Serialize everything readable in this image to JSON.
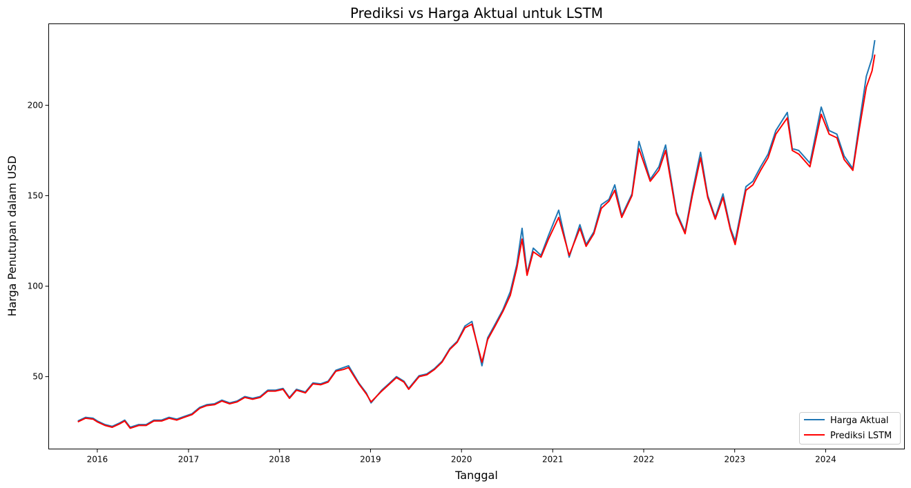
{
  "chart_data": {
    "type": "line",
    "title": "Prediksi vs Harga Aktual untuk LSTM",
    "xlabel": "Tanggal",
    "ylabel": "Harga Penutupan dalam USD",
    "x_ticks": [
      "2016",
      "2017",
      "2018",
      "2019",
      "2020",
      "2021",
      "2022",
      "2023",
      "2024"
    ],
    "y_ticks": [
      50,
      100,
      150,
      200
    ],
    "xlim": [
      "2015-06-20",
      "2024-11-12"
    ],
    "ylim": [
      10,
      245
    ],
    "grid": false,
    "legend_position": "lower-right",
    "series": [
      {
        "name": "Harga Aktual",
        "color": "#1f77b4",
        "points": [
          [
            "2015-10-15",
            25.5
          ],
          [
            "2015-11-15",
            27.5
          ],
          [
            "2015-12-15",
            27.0
          ],
          [
            "2016-01-01",
            25.5
          ],
          [
            "2016-02-01",
            23.5
          ],
          [
            "2016-03-01",
            22.5
          ],
          [
            "2016-04-01",
            24.5
          ],
          [
            "2016-04-20",
            26.0
          ],
          [
            "2016-05-12",
            22.0
          ],
          [
            "2016-06-15",
            23.5
          ],
          [
            "2016-07-15",
            23.5
          ],
          [
            "2016-08-15",
            26.0
          ],
          [
            "2016-09-15",
            26.0
          ],
          [
            "2016-10-15",
            27.5
          ],
          [
            "2016-11-15",
            26.5
          ],
          [
            "2016-12-15",
            28.0
          ],
          [
            "2017-01-15",
            29.5
          ],
          [
            "2017-02-15",
            33.0
          ],
          [
            "2017-03-15",
            34.5
          ],
          [
            "2017-04-15",
            35.0
          ],
          [
            "2017-05-15",
            37.0
          ],
          [
            "2017-06-15",
            35.5
          ],
          [
            "2017-07-15",
            36.5
          ],
          [
            "2017-08-15",
            39.0
          ],
          [
            "2017-09-15",
            38.0
          ],
          [
            "2017-10-15",
            39.0
          ],
          [
            "2017-11-15",
            42.5
          ],
          [
            "2017-12-15",
            42.5
          ],
          [
            "2018-01-15",
            43.5
          ],
          [
            "2018-02-10",
            38.5
          ],
          [
            "2018-03-10",
            43.0
          ],
          [
            "2018-04-15",
            41.5
          ],
          [
            "2018-05-15",
            46.5
          ],
          [
            "2018-06-15",
            46.0
          ],
          [
            "2018-07-15",
            47.5
          ],
          [
            "2018-08-15",
            53.5
          ],
          [
            "2018-09-15",
            55.0
          ],
          [
            "2018-10-05",
            56.0
          ],
          [
            "2018-11-15",
            46.5
          ],
          [
            "2018-12-15",
            41.0
          ],
          [
            "2019-01-03",
            35.5
          ],
          [
            "2019-02-15",
            42.5
          ],
          [
            "2019-03-15",
            46.0
          ],
          [
            "2019-04-15",
            50.0
          ],
          [
            "2019-05-15",
            47.5
          ],
          [
            "2019-06-03",
            43.5
          ],
          [
            "2019-07-15",
            50.5
          ],
          [
            "2019-08-15",
            51.5
          ],
          [
            "2019-09-15",
            54.5
          ],
          [
            "2019-10-15",
            58.5
          ],
          [
            "2019-11-15",
            65.5
          ],
          [
            "2019-12-15",
            69.5
          ],
          [
            "2020-01-15",
            78.0
          ],
          [
            "2020-02-12",
            80.5
          ],
          [
            "2020-03-23",
            56.0
          ],
          [
            "2020-04-15",
            71.5
          ],
          [
            "2020-05-15",
            79.0
          ],
          [
            "2020-06-15",
            87.0
          ],
          [
            "2020-07-15",
            97.0
          ],
          [
            "2020-08-10",
            112.0
          ],
          [
            "2020-08-31",
            132.0
          ],
          [
            "2020-09-20",
            107.0
          ],
          [
            "2020-10-15",
            121.0
          ],
          [
            "2020-11-15",
            117.0
          ],
          [
            "2020-12-15",
            128.0
          ],
          [
            "2021-01-25",
            142.0
          ],
          [
            "2021-03-08",
            116.0
          ],
          [
            "2021-04-20",
            134.0
          ],
          [
            "2021-05-15",
            123.0
          ],
          [
            "2021-06-15",
            130.0
          ],
          [
            "2021-07-15",
            145.0
          ],
          [
            "2021-08-15",
            148.0
          ],
          [
            "2021-09-07",
            156.0
          ],
          [
            "2021-10-05",
            139.0
          ],
          [
            "2021-11-15",
            151.0
          ],
          [
            "2021-12-13",
            180.0
          ],
          [
            "2022-01-27",
            159.0
          ],
          [
            "2022-03-03",
            166.0
          ],
          [
            "2022-03-30",
            178.0
          ],
          [
            "2022-05-12",
            141.0
          ],
          [
            "2022-06-16",
            130.0
          ],
          [
            "2022-07-15",
            152.0
          ],
          [
            "2022-08-17",
            174.0
          ],
          [
            "2022-09-15",
            150.0
          ],
          [
            "2022-10-15",
            138.0
          ],
          [
            "2022-11-15",
            151.0
          ],
          [
            "2022-12-15",
            132.0
          ],
          [
            "2023-01-03",
            125.0
          ],
          [
            "2023-02-15",
            155.0
          ],
          [
            "2023-03-15",
            158.0
          ],
          [
            "2023-04-15",
            166.0
          ],
          [
            "2023-05-15",
            173.0
          ],
          [
            "2023-06-15",
            186.0
          ],
          [
            "2023-07-31",
            196.0
          ],
          [
            "2023-08-20",
            176.0
          ],
          [
            "2023-09-15",
            175.0
          ],
          [
            "2023-10-30",
            168.0
          ],
          [
            "2023-12-14",
            199.0
          ],
          [
            "2024-01-15",
            186.0
          ],
          [
            "2024-02-15",
            184.0
          ],
          [
            "2024-03-15",
            172.0
          ],
          [
            "2024-04-19",
            165.0
          ],
          [
            "2024-05-15",
            190.0
          ],
          [
            "2024-06-12",
            216.0
          ],
          [
            "2024-07-05",
            226.0
          ],
          [
            "2024-07-16",
            236.0
          ]
        ]
      },
      {
        "name": "Prediksi LSTM",
        "color": "#ff0000",
        "points": [
          [
            "2015-10-15",
            25.0
          ],
          [
            "2015-11-15",
            27.0
          ],
          [
            "2015-12-15",
            26.5
          ],
          [
            "2016-01-01",
            25.0
          ],
          [
            "2016-02-01",
            23.0
          ],
          [
            "2016-03-01",
            22.0
          ],
          [
            "2016-04-01",
            24.0
          ],
          [
            "2016-04-20",
            25.5
          ],
          [
            "2016-05-12",
            21.5
          ],
          [
            "2016-06-15",
            23.0
          ],
          [
            "2016-07-15",
            23.0
          ],
          [
            "2016-08-15",
            25.5
          ],
          [
            "2016-09-15",
            25.5
          ],
          [
            "2016-10-15",
            27.0
          ],
          [
            "2016-11-15",
            26.0
          ],
          [
            "2016-12-15",
            27.5
          ],
          [
            "2017-01-15",
            29.0
          ],
          [
            "2017-02-15",
            32.5
          ],
          [
            "2017-03-15",
            34.0
          ],
          [
            "2017-04-15",
            34.5
          ],
          [
            "2017-05-15",
            36.5
          ],
          [
            "2017-06-15",
            35.0
          ],
          [
            "2017-07-15",
            36.0
          ],
          [
            "2017-08-15",
            38.5
          ],
          [
            "2017-09-15",
            37.5
          ],
          [
            "2017-10-15",
            38.5
          ],
          [
            "2017-11-15",
            42.0
          ],
          [
            "2017-12-15",
            42.0
          ],
          [
            "2018-01-15",
            43.0
          ],
          [
            "2018-02-10",
            38.0
          ],
          [
            "2018-03-10",
            42.5
          ],
          [
            "2018-04-15",
            41.0
          ],
          [
            "2018-05-15",
            46.0
          ],
          [
            "2018-06-15",
            45.5
          ],
          [
            "2018-07-15",
            47.0
          ],
          [
            "2018-08-15",
            53.0
          ],
          [
            "2018-09-15",
            54.0
          ],
          [
            "2018-10-05",
            55.0
          ],
          [
            "2018-11-15",
            46.0
          ],
          [
            "2018-12-15",
            40.5
          ],
          [
            "2019-01-03",
            36.0
          ],
          [
            "2019-02-15",
            42.0
          ],
          [
            "2019-03-15",
            45.5
          ],
          [
            "2019-04-15",
            49.5
          ],
          [
            "2019-05-15",
            47.0
          ],
          [
            "2019-06-03",
            43.0
          ],
          [
            "2019-07-15",
            50.0
          ],
          [
            "2019-08-15",
            51.0
          ],
          [
            "2019-09-15",
            54.0
          ],
          [
            "2019-10-15",
            58.0
          ],
          [
            "2019-11-15",
            65.0
          ],
          [
            "2019-12-15",
            69.0
          ],
          [
            "2020-01-15",
            77.0
          ],
          [
            "2020-02-12",
            79.0
          ],
          [
            "2020-03-23",
            58.0
          ],
          [
            "2020-04-15",
            70.5
          ],
          [
            "2020-05-15",
            78.0
          ],
          [
            "2020-06-15",
            86.0
          ],
          [
            "2020-07-15",
            95.0
          ],
          [
            "2020-08-10",
            110.0
          ],
          [
            "2020-08-31",
            126.0
          ],
          [
            "2020-09-20",
            106.0
          ],
          [
            "2020-10-15",
            119.0
          ],
          [
            "2020-11-15",
            116.0
          ],
          [
            "2020-12-15",
            126.0
          ],
          [
            "2021-01-25",
            138.0
          ],
          [
            "2021-03-08",
            117.0
          ],
          [
            "2021-04-20",
            132.0
          ],
          [
            "2021-05-15",
            122.0
          ],
          [
            "2021-06-15",
            129.0
          ],
          [
            "2021-07-15",
            143.0
          ],
          [
            "2021-08-15",
            147.0
          ],
          [
            "2021-09-07",
            153.0
          ],
          [
            "2021-10-05",
            138.0
          ],
          [
            "2021-11-15",
            150.0
          ],
          [
            "2021-12-13",
            176.0
          ],
          [
            "2022-01-27",
            158.0
          ],
          [
            "2022-03-03",
            164.0
          ],
          [
            "2022-03-30",
            175.0
          ],
          [
            "2022-05-12",
            140.0
          ],
          [
            "2022-06-16",
            129.0
          ],
          [
            "2022-07-15",
            150.0
          ],
          [
            "2022-08-17",
            171.0
          ],
          [
            "2022-09-15",
            149.0
          ],
          [
            "2022-10-15",
            137.0
          ],
          [
            "2022-11-15",
            149.0
          ],
          [
            "2022-12-15",
            131.0
          ],
          [
            "2023-01-03",
            123.0
          ],
          [
            "2023-02-15",
            153.0
          ],
          [
            "2023-03-15",
            156.0
          ],
          [
            "2023-04-15",
            164.0
          ],
          [
            "2023-05-15",
            171.0
          ],
          [
            "2023-06-15",
            184.0
          ],
          [
            "2023-07-31",
            193.0
          ],
          [
            "2023-08-20",
            175.0
          ],
          [
            "2023-09-15",
            173.0
          ],
          [
            "2023-10-30",
            166.0
          ],
          [
            "2023-12-14",
            195.0
          ],
          [
            "2024-01-15",
            184.0
          ],
          [
            "2024-02-15",
            182.0
          ],
          [
            "2024-03-15",
            170.0
          ],
          [
            "2024-04-19",
            164.0
          ],
          [
            "2024-05-15",
            187.0
          ],
          [
            "2024-06-12",
            210.0
          ],
          [
            "2024-07-05",
            219.0
          ],
          [
            "2024-07-16",
            228.0
          ]
        ]
      }
    ]
  }
}
